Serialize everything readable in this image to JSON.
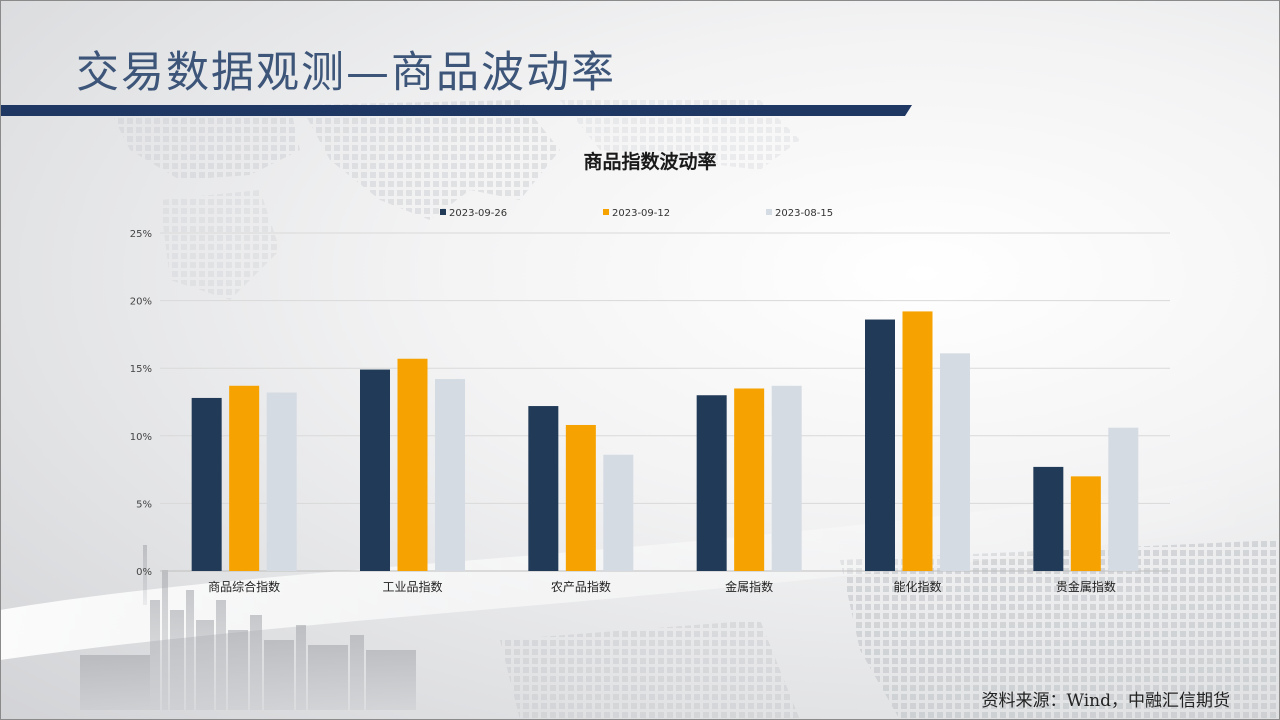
{
  "slide": {
    "title": "交易数据观测—商品波动率",
    "source": "资料来源：Wind，中融汇信期货"
  },
  "colors": {
    "title_blue": "#3c5579",
    "bar_navy": "#213a57",
    "bar_orange": "#f6a200",
    "bar_light": "#d5dbe3"
  },
  "chart_data": {
    "type": "bar",
    "title": "商品指数波动率",
    "xlabel": "",
    "ylabel": "",
    "ylim": [
      0,
      25
    ],
    "y_ticks": [
      "0%",
      "5%",
      "10%",
      "15%",
      "20%",
      "25%"
    ],
    "y_tick_values": [
      0,
      5,
      10,
      15,
      20,
      25
    ],
    "grid": true,
    "legend_position": "top",
    "categories": [
      "商品综合指数",
      "工业品指数",
      "农产品指数",
      "金属指数",
      "能化指数",
      "贵金属指数"
    ],
    "series": [
      {
        "name": "2023-09-26",
        "color": "#213a57",
        "values": [
          12.8,
          14.9,
          12.2,
          13.0,
          18.6,
          7.7
        ]
      },
      {
        "name": "2023-09-12",
        "color": "#f6a200",
        "values": [
          13.7,
          15.7,
          10.8,
          13.5,
          19.2,
          7.0
        ]
      },
      {
        "name": "2023-08-15",
        "color": "#d5dbe3",
        "values": [
          13.2,
          14.2,
          8.6,
          13.7,
          16.1,
          10.6
        ]
      }
    ]
  }
}
